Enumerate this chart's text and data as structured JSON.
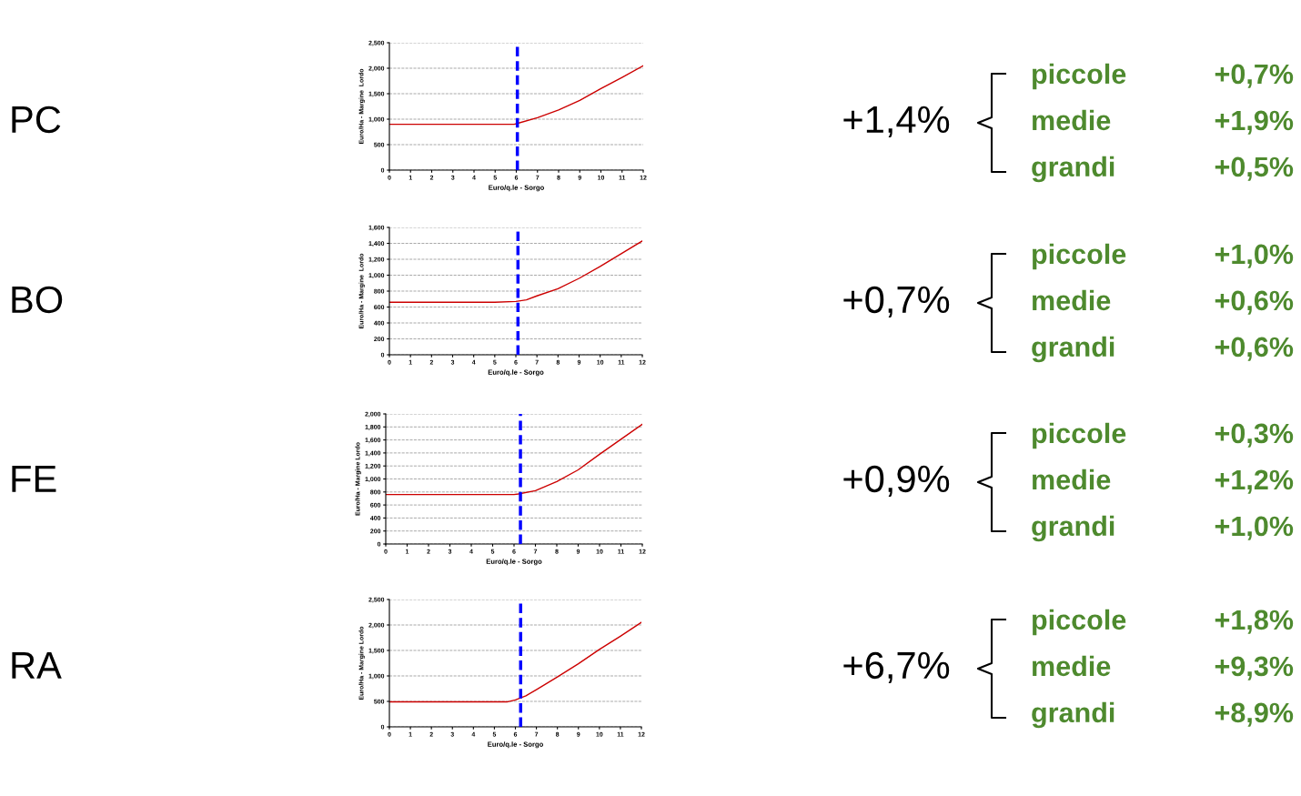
{
  "chart_data": [
    {
      "type": "line",
      "xlabel": "Euro/q.le - Sorgo",
      "ylabel": "Euro/Ha - Margine  Lordo",
      "x": [
        0,
        1,
        2,
        3,
        4,
        5,
        5.9,
        6,
        7,
        8,
        9,
        10,
        11,
        12
      ],
      "series": [
        {
          "color": "#cc0000",
          "values": [
            900,
            900,
            900,
            900,
            900,
            900,
            900,
            910,
            1030,
            1180,
            1370,
            1600,
            1820,
            2050
          ]
        }
      ],
      "xlim": [
        0,
        12
      ],
      "xticks": [
        0,
        1,
        2,
        3,
        4,
        5,
        6,
        7,
        8,
        9,
        10,
        11,
        12
      ],
      "ylim": [
        0,
        2500
      ],
      "yticks": [
        {
          "value": 0,
          "label": "0"
        },
        {
          "value": 500,
          "label": "500"
        },
        {
          "value": 1000,
          "label": "1,000"
        },
        {
          "value": 1500,
          "label": "1,500"
        },
        {
          "value": 2000,
          "label": "2,000"
        },
        {
          "value": 2500,
          "label": "2,500"
        }
      ],
      "grid": "y",
      "ref_lines": [
        {
          "axis": "x",
          "value": 6.05,
          "color": "#0000ff",
          "line_style": "dashed"
        }
      ],
      "annotations": [
        "PC",
        "+1,4%",
        "piccole",
        "+0,7%",
        "medie",
        "+1,9%",
        "grandi",
        "+0,5%"
      ]
    },
    {
      "type": "line",
      "xlabel": "Euro/q.le - Sorgo",
      "ylabel": "Euro/Ha - Margine  Lordo",
      "x": [
        0,
        1,
        2,
        3,
        4,
        5,
        6,
        6.5,
        7,
        8,
        9,
        10,
        11,
        12
      ],
      "series": [
        {
          "color": "#cc0000",
          "values": [
            660,
            660,
            660,
            660,
            660,
            660,
            670,
            690,
            740,
            830,
            960,
            1110,
            1270,
            1430
          ]
        }
      ],
      "xlim": [
        0,
        12
      ],
      "xticks": [
        0,
        1,
        2,
        3,
        4,
        5,
        6,
        7,
        8,
        9,
        10,
        11,
        12
      ],
      "ylim": [
        0,
        1600
      ],
      "yticks": [
        {
          "value": 0,
          "label": "0"
        },
        {
          "value": 200,
          "label": "200"
        },
        {
          "value": 400,
          "label": "400"
        },
        {
          "value": 600,
          "label": "600"
        },
        {
          "value": 800,
          "label": "800"
        },
        {
          "value": 1000,
          "label": "1,000"
        },
        {
          "value": 1200,
          "label": "1,200"
        },
        {
          "value": 1400,
          "label": "1,400"
        },
        {
          "value": 1600,
          "label": "1,600"
        }
      ],
      "grid": "y",
      "ref_lines": [
        {
          "axis": "x",
          "value": 6.1,
          "color": "#0000ff",
          "line_style": "dashed"
        }
      ],
      "annotations": [
        "BO",
        "+0,7%",
        "piccole",
        "+1,0%",
        "medie",
        "+0,6%",
        "grandi",
        "+0,6%"
      ]
    },
    {
      "type": "line",
      "xlabel": "Euro/q.le - Sorgo",
      "ylabel": "Euro/Ha - Margine Lordo",
      "x": [
        0,
        1,
        2,
        3,
        4,
        5,
        6,
        6.2,
        7,
        8,
        9,
        10,
        11,
        12
      ],
      "series": [
        {
          "color": "#cc0000",
          "values": [
            760,
            760,
            760,
            760,
            760,
            760,
            760,
            770,
            820,
            960,
            1140,
            1380,
            1610,
            1840
          ]
        }
      ],
      "xlim": [
        0,
        12
      ],
      "xticks": [
        0,
        1,
        2,
        3,
        4,
        5,
        6,
        7,
        8,
        9,
        10,
        11,
        12
      ],
      "ylim": [
        0,
        2000
      ],
      "yticks": [
        {
          "value": 0,
          "label": "0"
        },
        {
          "value": 200,
          "label": "200"
        },
        {
          "value": 400,
          "label": "400"
        },
        {
          "value": 600,
          "label": "600"
        },
        {
          "value": 800,
          "label": "800"
        },
        {
          "value": 1000,
          "label": "1,000"
        },
        {
          "value": 1200,
          "label": "1,200"
        },
        {
          "value": 1400,
          "label": "1,400"
        },
        {
          "value": 1600,
          "label": "1,600"
        },
        {
          "value": 1800,
          "label": "1,800"
        },
        {
          "value": 2000,
          "label": "2,000"
        }
      ],
      "grid": "y",
      "ref_lines": [
        {
          "axis": "x",
          "value": 6.3,
          "color": "#0000ff",
          "line_style": "dashed"
        }
      ],
      "annotations": [
        "FE",
        "+0,9%",
        "piccole",
        "+0,3%",
        "medie",
        "+1,2%",
        "grandi",
        "+1,0%"
      ]
    },
    {
      "type": "line",
      "xlabel": "Euro/q.le - Sorgo",
      "ylabel": "Euro/Ha - Margine Lordo",
      "x": [
        0,
        1,
        2,
        3,
        4,
        5,
        5.6,
        6,
        6.5,
        7,
        8,
        9,
        10,
        11,
        12
      ],
      "series": [
        {
          "color": "#cc0000",
          "values": [
            490,
            490,
            490,
            490,
            490,
            490,
            490,
            530,
            610,
            730,
            980,
            1240,
            1520,
            1780,
            2050
          ]
        }
      ],
      "xlim": [
        0,
        12
      ],
      "xticks": [
        0,
        1,
        2,
        3,
        4,
        5,
        6,
        7,
        8,
        9,
        10,
        11,
        12
      ],
      "ylim": [
        0,
        2500
      ],
      "yticks": [
        {
          "value": 0,
          "label": "0"
        },
        {
          "value": 500,
          "label": "500"
        },
        {
          "value": 1000,
          "label": "1,000"
        },
        {
          "value": 1500,
          "label": "1,500"
        },
        {
          "value": 2000,
          "label": "2,000"
        },
        {
          "value": 2500,
          "label": "2,500"
        }
      ],
      "grid": "y",
      "ref_lines": [
        {
          "axis": "x",
          "value": 6.25,
          "color": "#0000ff",
          "line_style": "dashed"
        }
      ],
      "annotations": [
        "RA",
        "+6,7%",
        "piccole",
        "+1,8%",
        "medie",
        "+9,3%",
        "grandi",
        "+8,9%"
      ]
    }
  ]
}
